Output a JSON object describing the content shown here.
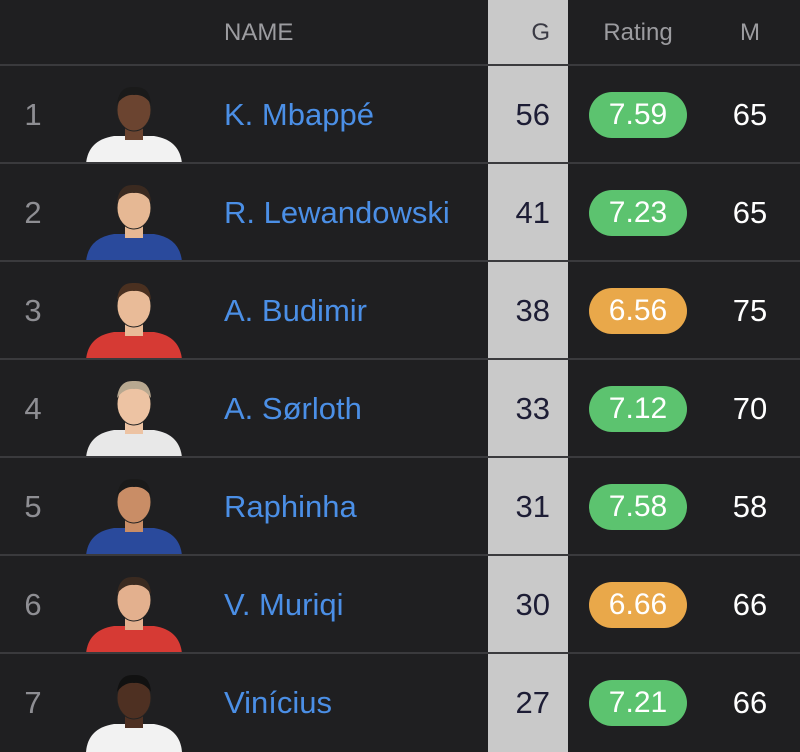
{
  "table": {
    "header": [
      "NAME",
      "G",
      "Rating",
      "M"
    ],
    "rows": [
      {
        "rank": 1,
        "name": "K. Mbappé",
        "goals": 56,
        "rating": 7.59,
        "rating_color": "#5cc36f",
        "matches": 65
      },
      {
        "rank": 2,
        "name": "R. Lewandowski",
        "goals": 41,
        "rating": 7.23,
        "rating_color": "#5cc36f",
        "matches": 65
      },
      {
        "rank": 3,
        "name": "A. Budimir",
        "goals": 38,
        "rating": 6.56,
        "rating_color": "#e9a84a",
        "matches": 75
      },
      {
        "rank": 4,
        "name": "A. Sørloth",
        "goals": 33,
        "rating": 7.12,
        "rating_color": "#5cc36f",
        "matches": 70
      },
      {
        "rank": 5,
        "name": "Raphinha",
        "goals": 31,
        "rating": 7.58,
        "rating_color": "#5cc36f",
        "matches": 58
      },
      {
        "rank": 6,
        "name": "V. Muriqi",
        "goals": 30,
        "rating": 6.66,
        "rating_color": "#e9a84a",
        "matches": 66
      },
      {
        "rank": 7,
        "name": "Vinícius",
        "goals": 27,
        "rating": 7.21,
        "rating_color": "#5cc36f",
        "matches": 66
      }
    ]
  }
}
